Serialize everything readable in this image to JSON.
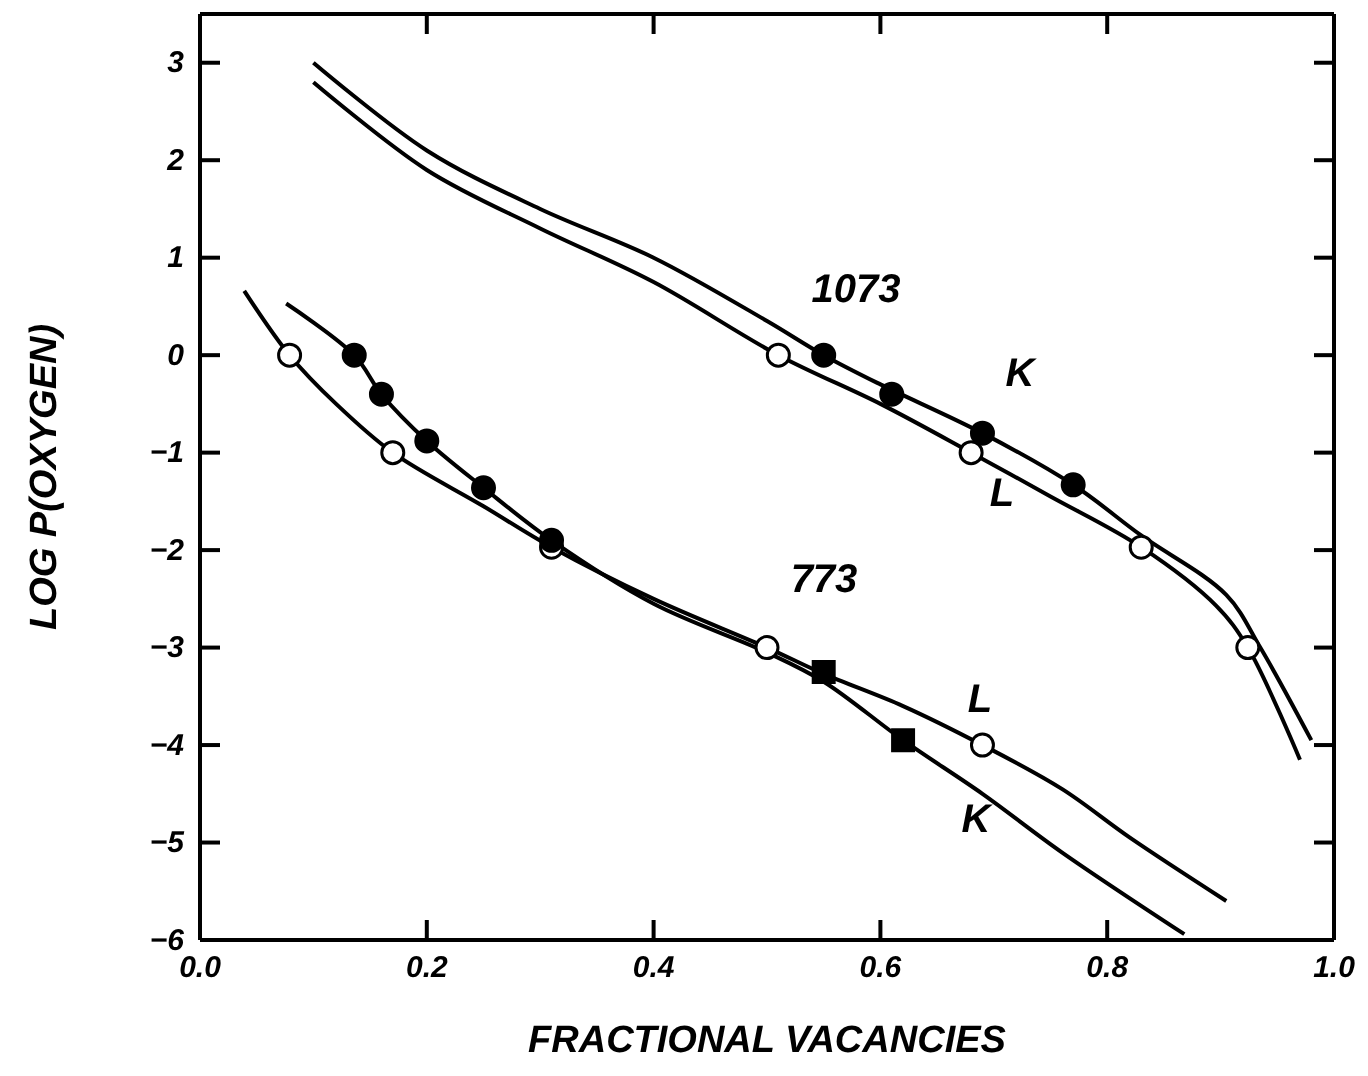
{
  "chart_data": {
    "type": "line",
    "xlabel": "FRACTIONAL VACANCIES",
    "ylabel": "LOG P(OXYGEN)",
    "xlim": [
      0,
      1
    ],
    "ylim": [
      -6,
      3.5
    ],
    "xticks": [
      {
        "value": 0,
        "label": "0.0"
      },
      {
        "value": 0.2,
        "label": "0.2"
      },
      {
        "value": 0.4,
        "label": "0.4"
      },
      {
        "value": 0.6,
        "label": "0.6"
      },
      {
        "value": 0.8,
        "label": "0.8"
      },
      {
        "value": 1,
        "label": "1.0"
      }
    ],
    "yticks": [
      -6,
      -5,
      -4,
      -3,
      -2,
      -1,
      0,
      1,
      2,
      3
    ],
    "grid": false,
    "line_style": "solid",
    "series": [
      {
        "color": "#000000",
        "x": [
          0.1,
          0.2,
          0.3,
          0.4,
          0.5,
          0.55,
          0.6,
          0.69,
          0.77,
          0.83,
          0.905,
          0.935,
          0.98
        ],
        "values": [
          3.0,
          2.1,
          1.5,
          1.0,
          0.35,
          0,
          -0.3,
          -0.8,
          -1.33,
          -1.85,
          -2.46,
          -3.0,
          -3.95
        ]
      },
      {
        "color": "#000000",
        "x": [
          0.1,
          0.2,
          0.3,
          0.4,
          0.51,
          0.6,
          0.68,
          0.75,
          0.83,
          0.896,
          0.924,
          0.97
        ],
        "values": [
          2.8,
          1.9,
          1.3,
          0.75,
          0,
          -0.5,
          -1.0,
          -1.45,
          -1.97,
          -2.57,
          -3.0,
          -4.15
        ]
      },
      {
        "color": "#000000",
        "x": [
          0.039,
          0.079,
          0.12,
          0.17,
          0.25,
          0.31,
          0.4,
          0.5,
          0.55,
          0.62,
          0.69,
          0.76,
          0.82,
          0.905
        ],
        "values": [
          0.66,
          0,
          -0.5,
          -1.0,
          -1.55,
          -1.97,
          -2.5,
          -3.0,
          -3.27,
          -3.6,
          -4.0,
          -4.45,
          -4.95,
          -5.6
        ]
      },
      {
        "color": "#000000",
        "x": [
          0.076,
          0.136,
          0.16,
          0.2,
          0.25,
          0.31,
          0.4,
          0.5,
          0.55,
          0.62,
          0.69,
          0.76,
          0.868
        ],
        "values": [
          0.53,
          0,
          -0.4,
          -0.88,
          -1.36,
          -1.9,
          -2.55,
          -3.05,
          -3.35,
          -3.95,
          -4.5,
          -5.1,
          -5.94
        ]
      },
      {
        "type": "scatter",
        "color": "#ffffff",
        "marker": "circle",
        "x": [
          0.51,
          0.68,
          0.83,
          0.924
        ],
        "values": [
          0,
          -1,
          -1.97,
          -3
        ]
      },
      {
        "type": "scatter",
        "color": "#000000",
        "marker": "circle",
        "x": [
          0.55,
          0.61,
          0.69,
          0.77
        ],
        "values": [
          0,
          -0.4,
          -0.8,
          -1.33
        ]
      },
      {
        "type": "scatter",
        "color": "#ffffff",
        "marker": "circle",
        "x": [
          0.079,
          0.17,
          0.31,
          0.5,
          0.69
        ],
        "values": [
          0,
          -1,
          -1.97,
          -3,
          -4
        ]
      },
      {
        "type": "scatter",
        "color": "#000000",
        "marker": "circle",
        "x": [
          0.136,
          0.16,
          0.2,
          0.25,
          0.31
        ],
        "values": [
          0,
          -0.4,
          -0.88,
          -1.36,
          -1.9
        ]
      },
      {
        "type": "scatter",
        "color": "#000000",
        "marker": "square",
        "x": [
          0.55,
          0.62
        ],
        "values": [
          -3.25,
          -3.95
        ]
      }
    ],
    "annotations": [
      "1073",
      "K",
      "L",
      "773",
      "L",
      "K"
    ]
  }
}
